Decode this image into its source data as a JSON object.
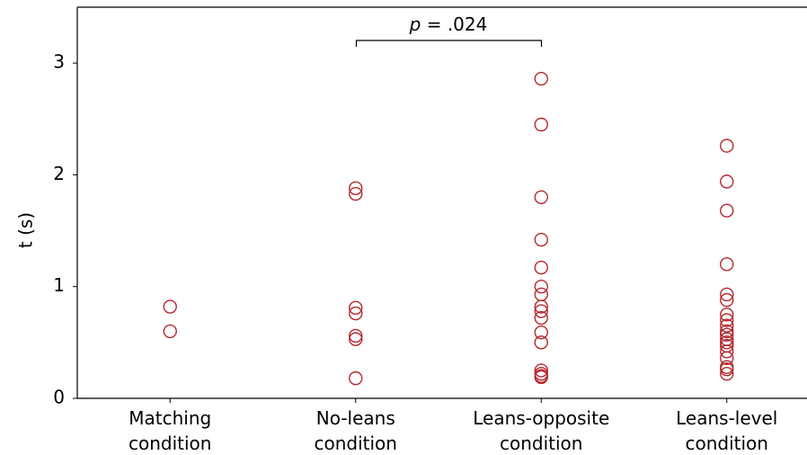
{
  "chart_data": {
    "type": "scatter",
    "ylabel": "t (s)",
    "categories": [
      "Matching condition",
      "No-leans condition",
      "Leans-opposite condition",
      "Leans-level condition"
    ],
    "values": [
      [
        0.82,
        0.6
      ],
      [
        1.88,
        1.83,
        0.81,
        0.76,
        0.56,
        0.53,
        0.18
      ],
      [
        2.86,
        2.45,
        1.8,
        1.42,
        1.17,
        1.0,
        0.93,
        0.82,
        0.78,
        0.72,
        0.59,
        0.5,
        0.25,
        0.22,
        0.2,
        0.19
      ],
      [
        2.26,
        1.94,
        1.68,
        1.2,
        0.93,
        0.88,
        0.75,
        0.7,
        0.65,
        0.6,
        0.57,
        0.53,
        0.5,
        0.47,
        0.42,
        0.36,
        0.28,
        0.26,
        0.22
      ]
    ],
    "color": "#b5282e",
    "ylim": [
      0,
      3.5
    ],
    "yticks": [
      0,
      1,
      2,
      3
    ],
    "annotation": "p = .024"
  }
}
